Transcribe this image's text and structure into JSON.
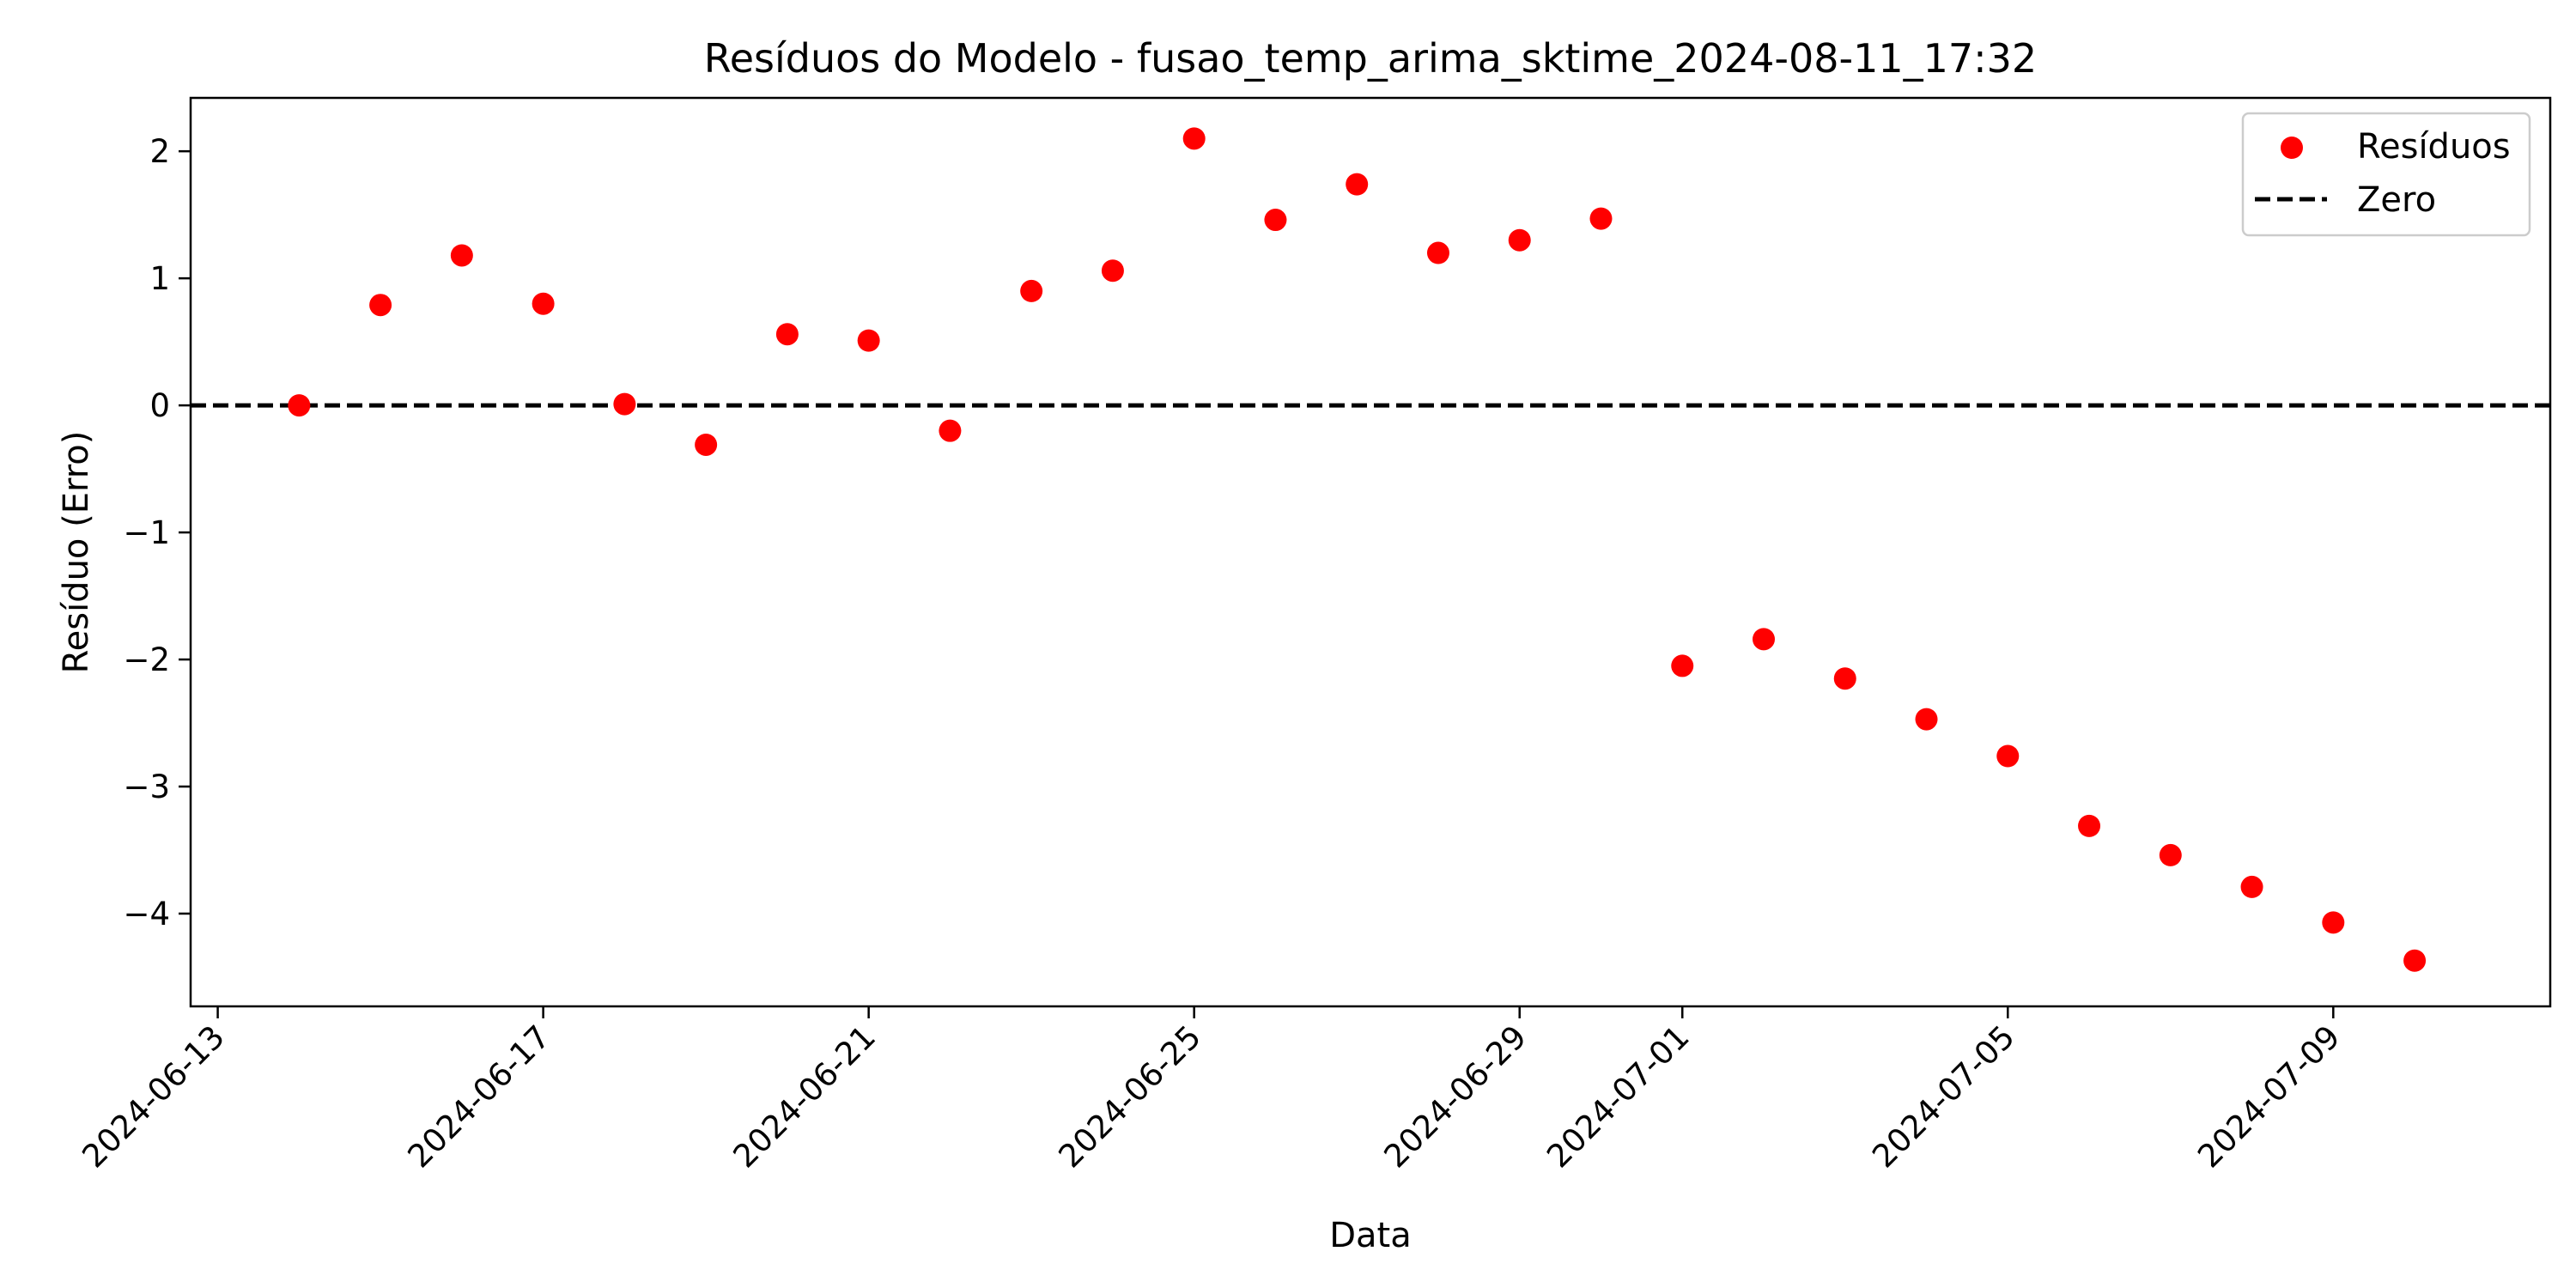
{
  "colors": {
    "points": "#ff0000",
    "zero_line": "#000000",
    "axes": "#000000",
    "legend_border": "#cccccc",
    "background": "#ffffff"
  },
  "chart_data": {
    "type": "scatter",
    "title": "Resíduos do Modelo - fusao_temp_arima_sktime_2024-08-11_17:32",
    "xlabel": "Data",
    "ylabel": "Resíduo (Erro)",
    "xlim": [
      "2024-06-12T16:00",
      "2024-07-11T16:00"
    ],
    "ylim": [
      -4.73,
      2.42
    ],
    "x_ticks": [
      "2024-06-13",
      "2024-06-17",
      "2024-06-21",
      "2024-06-25",
      "2024-06-29",
      "2024-07-01",
      "2024-07-05",
      "2024-07-09"
    ],
    "y_ticks": [
      2,
      1,
      0,
      -1,
      -2,
      -3,
      -4
    ],
    "y_tick_labels": [
      "2",
      "1",
      "0",
      "−1",
      "−2",
      "−3",
      "−4"
    ],
    "grid": false,
    "legend": {
      "location": "upper right",
      "entries": [
        {
          "label": "Resíduos",
          "marker": "circle",
          "color": "#ff0000"
        },
        {
          "label": "Zero",
          "marker": "dashed-line",
          "color": "#000000"
        }
      ]
    },
    "reference_lines": [
      {
        "label": "Zero",
        "y": 0,
        "style": "dashed"
      }
    ],
    "series": [
      {
        "name": "Resíduos",
        "color": "#ff0000",
        "points": [
          {
            "x": "2024-06-14",
            "y": 0.0
          },
          {
            "x": "2024-06-15",
            "y": 0.79
          },
          {
            "x": "2024-06-16",
            "y": 1.18
          },
          {
            "x": "2024-06-17",
            "y": 0.8
          },
          {
            "x": "2024-06-18",
            "y": 0.01
          },
          {
            "x": "2024-06-19",
            "y": -0.31
          },
          {
            "x": "2024-06-20",
            "y": 0.56
          },
          {
            "x": "2024-06-21",
            "y": 0.51
          },
          {
            "x": "2024-06-22",
            "y": -0.2
          },
          {
            "x": "2024-06-23",
            "y": 0.9
          },
          {
            "x": "2024-06-24",
            "y": 1.06
          },
          {
            "x": "2024-06-25",
            "y": 2.1
          },
          {
            "x": "2024-06-26",
            "y": 1.46
          },
          {
            "x": "2024-06-27",
            "y": 1.74
          },
          {
            "x": "2024-06-28",
            "y": 1.2
          },
          {
            "x": "2024-06-29",
            "y": 1.3
          },
          {
            "x": "2024-06-30",
            "y": 1.47
          },
          {
            "x": "2024-07-01",
            "y": -2.05
          },
          {
            "x": "2024-07-02",
            "y": -1.84
          },
          {
            "x": "2024-07-03",
            "y": -2.15
          },
          {
            "x": "2024-07-04",
            "y": -2.47
          },
          {
            "x": "2024-07-05",
            "y": -2.76
          },
          {
            "x": "2024-07-06",
            "y": -3.31
          },
          {
            "x": "2024-07-07",
            "y": -3.54
          },
          {
            "x": "2024-07-08",
            "y": -3.79
          },
          {
            "x": "2024-07-09",
            "y": -4.07
          },
          {
            "x": "2024-07-10",
            "y": -4.37
          }
        ]
      }
    ]
  }
}
